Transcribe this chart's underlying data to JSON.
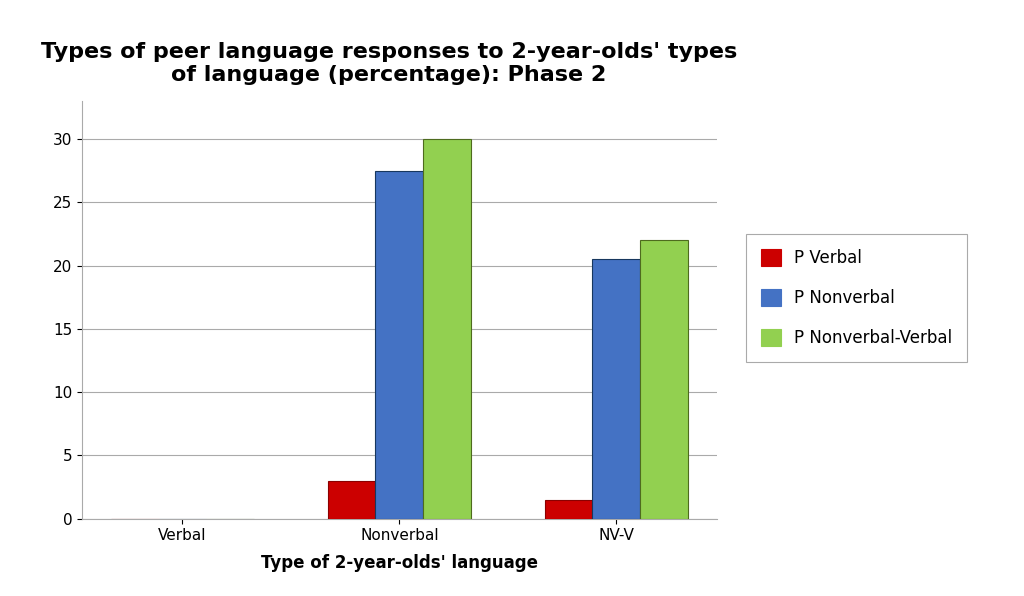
{
  "title": "Types of peer language responses to 2-year-olds' types\nof language (percentage): Phase 2",
  "xlabel": "Type of 2-year-olds' language",
  "categories": [
    "Verbal",
    "Nonverbal",
    "NV-V"
  ],
  "series": {
    "P Verbal": [
      0,
      3,
      1.5
    ],
    "P Nonverbal": [
      0,
      27.5,
      20.5
    ],
    "P Nonverbal-Verbal": [
      0,
      30,
      22
    ]
  },
  "colors": {
    "P Verbal": "#CC0000",
    "P Nonverbal": "#4472C4",
    "P Nonverbal-Verbal": "#92D050"
  },
  "edge_colors": {
    "P Verbal": "#8B0000",
    "P Nonverbal": "#17375E",
    "P Nonverbal-Verbal": "#4E6B1E"
  },
  "ylim": [
    0,
    33
  ],
  "yticks": [
    0,
    5,
    10,
    15,
    20,
    25,
    30
  ],
  "bar_width": 0.22,
  "background_color": "#FFFFFF",
  "grid_color": "#AAAAAA",
  "title_fontsize": 16,
  "axis_label_fontsize": 12,
  "tick_fontsize": 11,
  "legend_fontsize": 12
}
